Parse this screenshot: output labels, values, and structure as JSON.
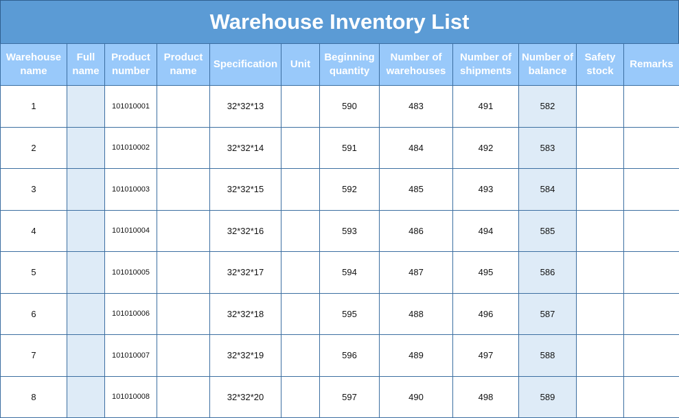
{
  "title": "Warehouse Inventory List",
  "columns": [
    "Warehouse name",
    "Full name",
    "Product number",
    "Product name",
    "Specification",
    "Unit",
    "Beginning quantity",
    "Number of warehouses",
    "Number of shipments",
    "Number of balance",
    "Safety stock",
    "Remarks"
  ],
  "rows": [
    {
      "warehouse": "1",
      "full_name": "",
      "product_number": "101010001",
      "product_name": "",
      "specification": "32*32*13",
      "unit": "",
      "beginning": "590",
      "warehouses": "483",
      "shipments": "491",
      "balance": "582",
      "safety": "",
      "remarks": ""
    },
    {
      "warehouse": "2",
      "full_name": "",
      "product_number": "101010002",
      "product_name": "",
      "specification": "32*32*14",
      "unit": "",
      "beginning": "591",
      "warehouses": "484",
      "shipments": "492",
      "balance": "583",
      "safety": "",
      "remarks": ""
    },
    {
      "warehouse": "3",
      "full_name": "",
      "product_number": "101010003",
      "product_name": "",
      "specification": "32*32*15",
      "unit": "",
      "beginning": "592",
      "warehouses": "485",
      "shipments": "493",
      "balance": "584",
      "safety": "",
      "remarks": ""
    },
    {
      "warehouse": "4",
      "full_name": "",
      "product_number": "101010004",
      "product_name": "",
      "specification": "32*32*16",
      "unit": "",
      "beginning": "593",
      "warehouses": "486",
      "shipments": "494",
      "balance": "585",
      "safety": "",
      "remarks": ""
    },
    {
      "warehouse": "5",
      "full_name": "",
      "product_number": "101010005",
      "product_name": "",
      "specification": "32*32*17",
      "unit": "",
      "beginning": "594",
      "warehouses": "487",
      "shipments": "495",
      "balance": "586",
      "safety": "",
      "remarks": ""
    },
    {
      "warehouse": "6",
      "full_name": "",
      "product_number": "101010006",
      "product_name": "",
      "specification": "32*32*18",
      "unit": "",
      "beginning": "595",
      "warehouses": "488",
      "shipments": "496",
      "balance": "587",
      "safety": "",
      "remarks": ""
    },
    {
      "warehouse": "7",
      "full_name": "",
      "product_number": "101010007",
      "product_name": "",
      "specification": "32*32*19",
      "unit": "",
      "beginning": "596",
      "warehouses": "489",
      "shipments": "497",
      "balance": "588",
      "safety": "",
      "remarks": ""
    },
    {
      "warehouse": "8",
      "full_name": "",
      "product_number": "101010008",
      "product_name": "",
      "specification": "32*32*20",
      "unit": "",
      "beginning": "597",
      "warehouses": "490",
      "shipments": "498",
      "balance": "589",
      "safety": "",
      "remarks": ""
    }
  ],
  "colors": {
    "title_bg": "#5b9bd5",
    "header_bg": "#99c9fa",
    "shaded_cell": "#deebf7",
    "border": "#3a6da0"
  }
}
